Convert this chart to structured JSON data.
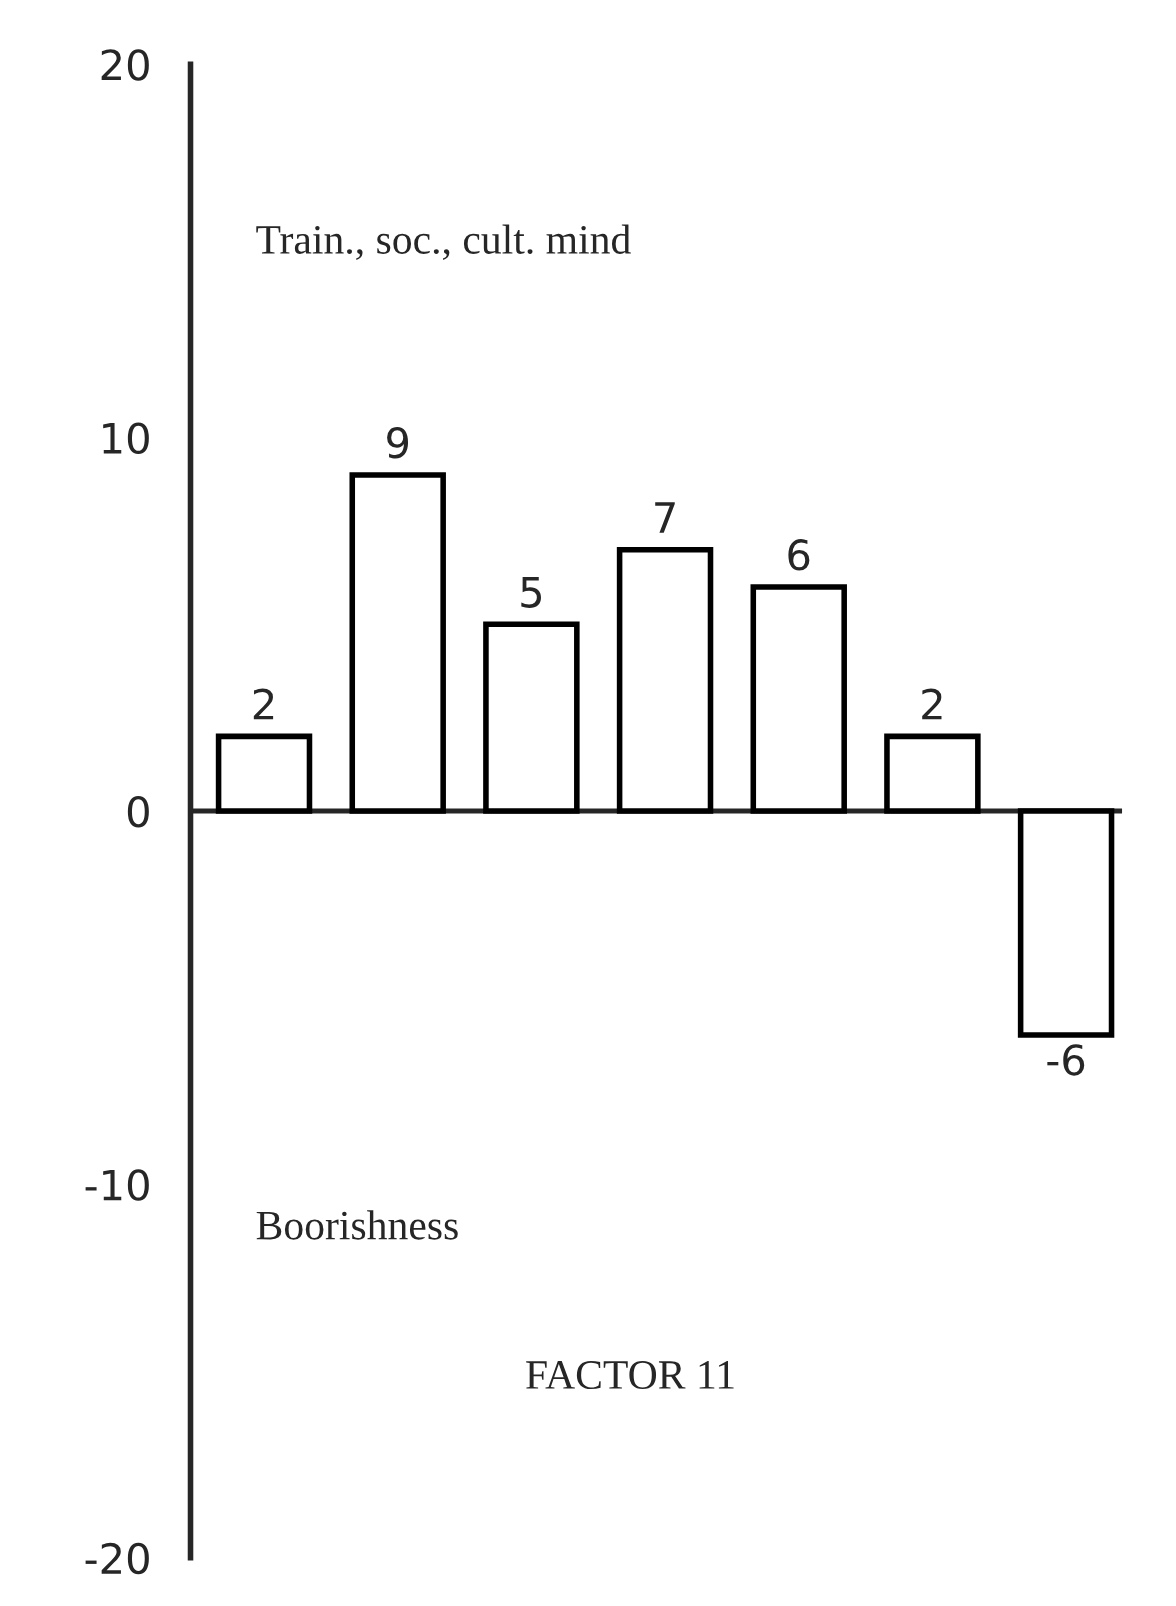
{
  "chart_data": {
    "type": "bar",
    "categories": [
      null,
      null,
      null,
      null,
      null,
      null,
      null
    ],
    "values": [
      2,
      9,
      5,
      7,
      6,
      2,
      -6
    ],
    "color": "#ffffff",
    "data_labels": true,
    "ylim": [
      -20,
      20
    ],
    "yticks": [
      -20,
      -10,
      0,
      10,
      20
    ],
    "tick_labels": "y",
    "annotations": [
      "Train., soc., cult. mind",
      "Boorishness",
      "FACTOR 11"
    ]
  }
}
